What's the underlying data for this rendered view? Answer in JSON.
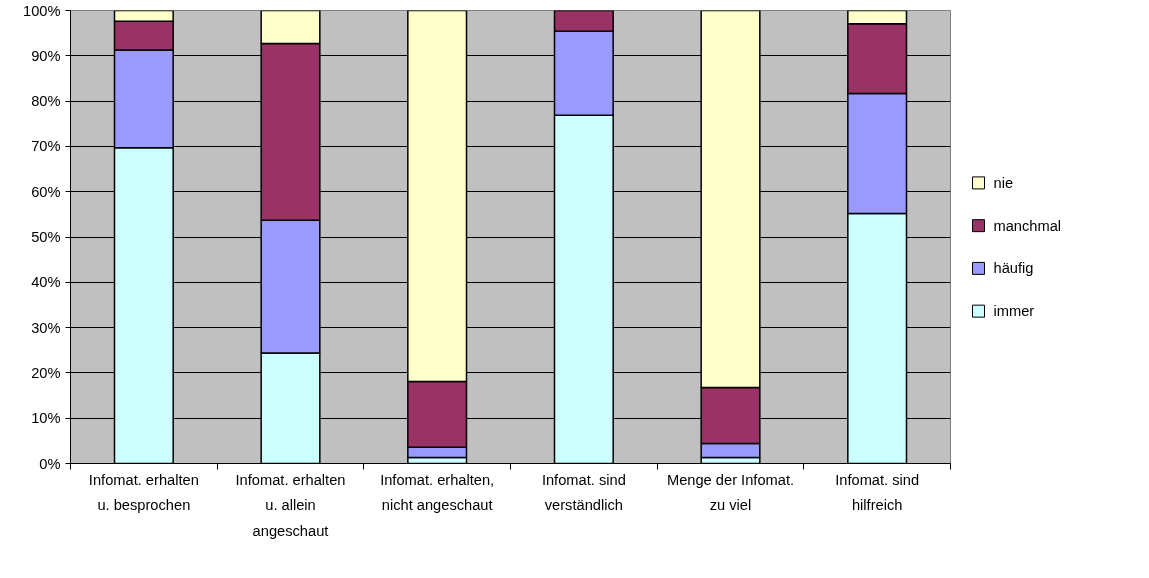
{
  "chart_data": {
    "type": "bar",
    "stacked": true,
    "categories": [
      "Infomat. erhalten u. besprochen",
      "Infomat. erhalten u. allein angeschaut",
      "Infomat. erhalten, nicht angeschaut",
      "Infomat. sind verständlich",
      "Menge der Infomat. zu viel",
      "Infomat. sind hilfreich"
    ],
    "series": [
      {
        "name": "immer",
        "color": "#ccffff",
        "values": [
          69.7,
          24.4,
          1.3,
          76.9,
          1.3,
          55.2
        ]
      },
      {
        "name": "häufig",
        "color": "#9999ff",
        "values": [
          21.6,
          29.3,
          2.3,
          18.5,
          3.1,
          26.5
        ]
      },
      {
        "name": "manchmal",
        "color": "#993366",
        "values": [
          6.3,
          39.0,
          14.5,
          4.6,
          12.4,
          15.4
        ]
      },
      {
        "name": "nie",
        "color": "#ffffcc",
        "values": [
          2.4,
          7.3,
          81.9,
          0,
          83.2,
          2.9
        ]
      }
    ],
    "ylim": [
      0,
      100
    ],
    "yticks": [
      {
        "value": 0,
        "label": "0%"
      },
      {
        "value": 10,
        "label": "10%"
      },
      {
        "value": 20,
        "label": "20%"
      },
      {
        "value": 30,
        "label": "30%"
      },
      {
        "value": 40,
        "label": "40%"
      },
      {
        "value": 50,
        "label": "50%"
      },
      {
        "value": 60,
        "label": "60%"
      },
      {
        "value": 70,
        "label": "70%"
      },
      {
        "value": 80,
        "label": "80%"
      },
      {
        "value": 90,
        "label": "90%"
      },
      {
        "value": 100,
        "label": "100%"
      }
    ],
    "grid": "y",
    "legend": "right"
  }
}
